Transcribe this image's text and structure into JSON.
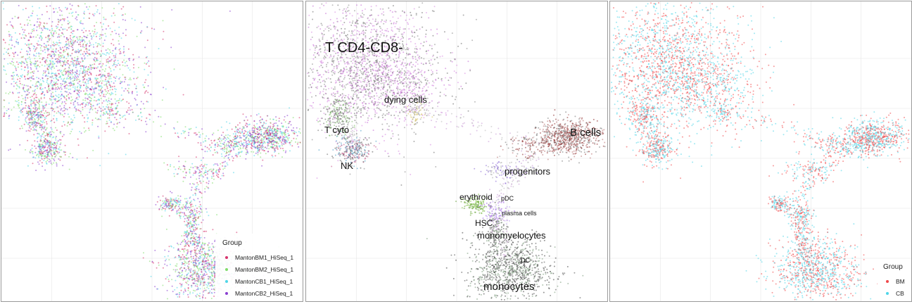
{
  "chart_data": [
    {
      "type": "scatter",
      "title": "",
      "color_by": "Group",
      "legend": {
        "title": "Group",
        "placement": "bottom-right",
        "entries": [
          {
            "label": "MantonBM1_HiSeq_1",
            "color": "#d6336c"
          },
          {
            "label": "MantonBM2_HiSeq_1",
            "color": "#7fdc6a"
          },
          {
            "label": "MantonCB1_HiSeq_1",
            "color": "#4fd5e8"
          },
          {
            "label": "MantonCB2_HiSeq_1",
            "color": "#8a3fd0"
          }
        ]
      },
      "grid": true,
      "axes": "hidden"
    },
    {
      "type": "scatter",
      "title": "",
      "color_by": "cluster",
      "grid": true,
      "axes": "hidden",
      "annotations": [
        {
          "text": "T CD4-CD8-",
          "size": "large"
        },
        {
          "text": "dying cells",
          "size": "medium"
        },
        {
          "text": "T cyto",
          "size": "medium"
        },
        {
          "text": "NK",
          "size": "medium"
        },
        {
          "text": "B cells",
          "size": "large"
        },
        {
          "text": "progenitors",
          "size": "medium"
        },
        {
          "text": "erythroid",
          "size": "medium"
        },
        {
          "text": "pDC",
          "size": "small"
        },
        {
          "text": "plasma cells",
          "size": "small"
        },
        {
          "text": "HSC",
          "size": "medium"
        },
        {
          "text": "monomyelocytes",
          "size": "medium"
        },
        {
          "text": "DC",
          "size": "small"
        },
        {
          "text": "monocytes",
          "size": "large"
        }
      ]
    },
    {
      "type": "scatter",
      "title": "",
      "color_by": "Group",
      "legend": {
        "title": "Group",
        "placement": "bottom-right",
        "entries": [
          {
            "label": "BM",
            "color": "#f0484a"
          },
          {
            "label": "CB",
            "color": "#4fd5e8"
          }
        ]
      },
      "grid": true,
      "axes": "hidden"
    }
  ]
}
